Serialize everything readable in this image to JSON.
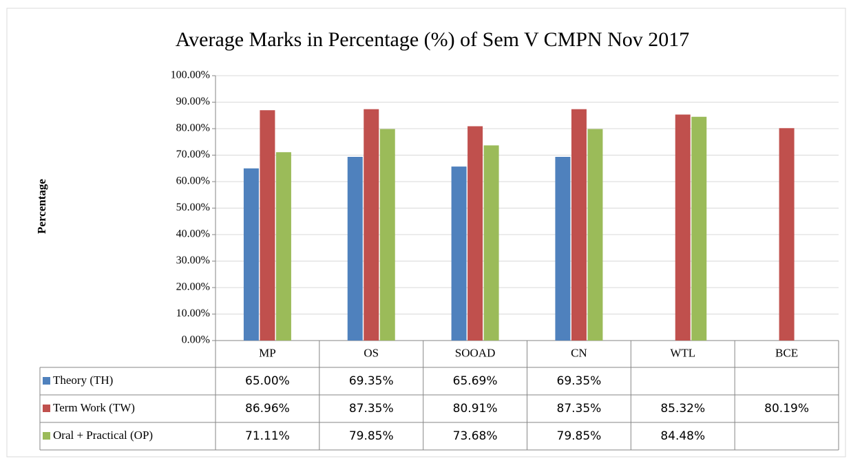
{
  "chart_data": {
    "type": "bar",
    "title": "Average Marks in Percentage (%) of Sem V CMPN Nov 2017",
    "y_label": "Percentage",
    "categories": [
      "MP",
      "OS",
      "SOOAD",
      "CN",
      "WTL",
      "BCE"
    ],
    "series": [
      {
        "name": "Theory (TH)",
        "color": "#4f81bd",
        "values": [
          65.0,
          69.35,
          65.69,
          69.35,
          null,
          null
        ],
        "value_labels": [
          "65.00%",
          "69.35%",
          "65.69%",
          "69.35%",
          null,
          null
        ]
      },
      {
        "name": "Term Work (TW)",
        "color": "#c0504d",
        "values": [
          86.96,
          87.35,
          80.91,
          87.35,
          85.32,
          80.19
        ],
        "value_labels": [
          "86.96%",
          "87.35%",
          "80.91%",
          "87.35%",
          "85.32%",
          "80.19%"
        ]
      },
      {
        "name": "Oral + Practical (OP)",
        "color": "#9bbb59",
        "values": [
          71.11,
          79.85,
          73.68,
          79.85,
          84.48,
          null
        ],
        "value_labels": [
          "71.11%",
          "79.85%",
          "73.68%",
          "79.85%",
          "84.48%",
          null
        ]
      }
    ],
    "ylim": [
      0,
      100
    ],
    "yticks": [
      {
        "value": 0,
        "label": "0.00%"
      },
      {
        "value": 10,
        "label": "10.00%"
      },
      {
        "value": 20,
        "label": "20.00%"
      },
      {
        "value": 30,
        "label": "30.00%"
      },
      {
        "value": 40,
        "label": "40.00%"
      },
      {
        "value": 50,
        "label": "50.00%"
      },
      {
        "value": 60,
        "label": "60.00%"
      },
      {
        "value": 70,
        "label": "70.00%"
      },
      {
        "value": 80,
        "label": "80.00%"
      },
      {
        "value": 90,
        "label": "90.00%"
      },
      {
        "value": 100,
        "label": "100.00%"
      }
    ],
    "grid": true
  }
}
